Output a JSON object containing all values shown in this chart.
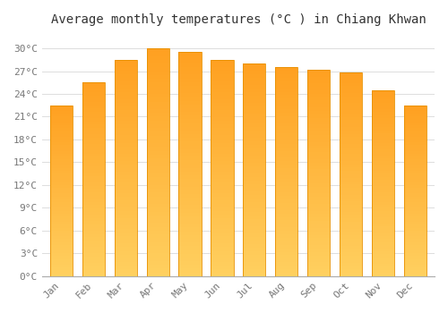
{
  "months": [
    "Jan",
    "Feb",
    "Mar",
    "Apr",
    "May",
    "Jun",
    "Jul",
    "Aug",
    "Sep",
    "Oct",
    "Nov",
    "Dec"
  ],
  "values": [
    22.5,
    25.5,
    28.5,
    30.0,
    29.5,
    28.5,
    28.0,
    27.5,
    27.2,
    26.8,
    24.5,
    22.5
  ],
  "title": "Average monthly temperatures (°C ) in Chiang Khwan",
  "ylim": [
    0,
    32
  ],
  "ytick_step": 3,
  "background_color": "#FFFFFF",
  "grid_color": "#DDDDDD",
  "title_fontsize": 10,
  "tick_fontsize": 8,
  "bar_color_bottom": "#FFD060",
  "bar_color_top": "#FFA020",
  "bar_edge_color": "#E89000"
}
